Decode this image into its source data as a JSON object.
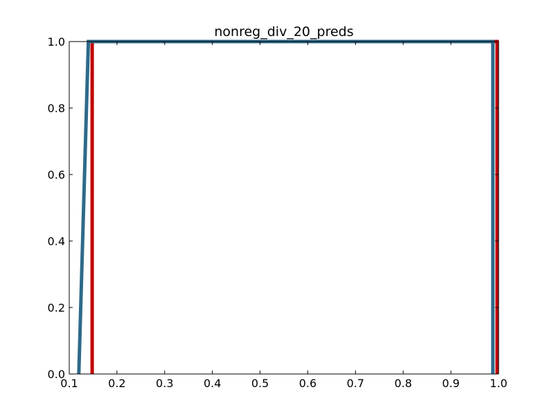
{
  "chart_data": {
    "type": "line",
    "title": "nonreg_div_20_preds",
    "xlabel": "",
    "ylabel": "",
    "xlim": [
      0.1,
      1.0
    ],
    "ylim": [
      0.0,
      1.0
    ],
    "x_ticks": [
      "0.1",
      "0.2",
      "0.3",
      "0.4",
      "0.5",
      "0.6",
      "0.7",
      "0.8",
      "0.9",
      "1.0"
    ],
    "y_ticks": [
      "0.0",
      "0.2",
      "0.4",
      "0.6",
      "0.8",
      "1.0"
    ],
    "grid": false,
    "legend": false,
    "series": [
      {
        "color": "#c00000",
        "x": [
          0.148,
          0.148,
          0.997,
          0.997
        ],
        "y": [
          0.0,
          1.0,
          1.0,
          0.0
        ]
      },
      {
        "color": "#2e6a8a",
        "x": [
          0.12,
          0.14,
          0.988,
          0.988
        ],
        "y": [
          0.0,
          1.0,
          1.0,
          0.0
        ]
      }
    ]
  }
}
